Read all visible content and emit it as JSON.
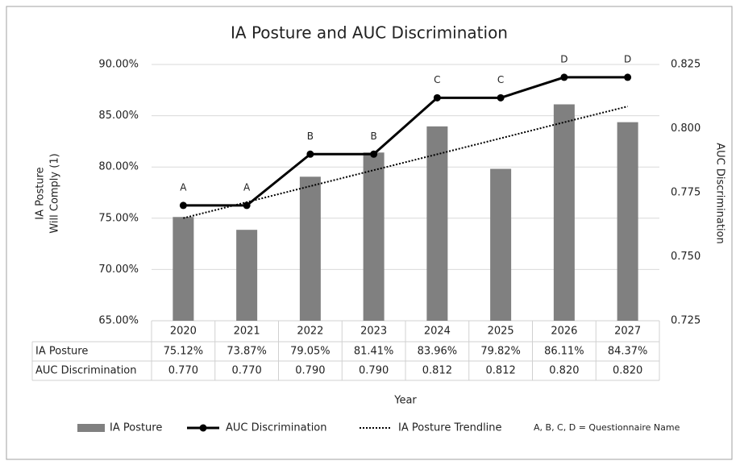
{
  "chart_data": {
    "type": "bar-line",
    "title": "IA Posture and AUC Discrimination",
    "categories": [
      "2020",
      "2021",
      "2022",
      "2023",
      "2024",
      "2025",
      "2026",
      "2027"
    ],
    "xlabel": "Year",
    "ylabel": [
      "IA Posture",
      "Will Comply (1)"
    ],
    "y2label": "AUC Discrimination",
    "series": [
      {
        "name": "IA Posture",
        "type": "bar",
        "color": "#808080",
        "values": [
          75.12,
          73.87,
          79.05,
          81.41,
          83.96,
          79.82,
          86.11,
          84.37
        ],
        "value_labels": [
          "75.12%",
          "73.87%",
          "79.05%",
          "81.41%",
          "83.96%",
          "79.82%",
          "86.11%",
          "84.37%"
        ]
      },
      {
        "name": "AUC Discrimination",
        "type": "line",
        "axis": "y2",
        "color": "#000000",
        "values": [
          0.77,
          0.77,
          0.79,
          0.79,
          0.812,
          0.812,
          0.82,
          0.82
        ],
        "value_labels": [
          "0.770",
          "0.770",
          "0.790",
          "0.790",
          "0.812",
          "0.812",
          "0.820",
          "0.820"
        ],
        "point_labels": [
          "A",
          "A",
          "B",
          "B",
          "C",
          "C",
          "D",
          "D"
        ]
      },
      {
        "name": "IA Posture Trendline",
        "type": "line",
        "style": "dotted",
        "color": "#000000",
        "values": [
          75.01,
          76.57,
          78.13,
          79.69,
          81.24,
          82.8,
          84.36,
          85.91
        ]
      }
    ],
    "note": "A, B, C, D = Questionnaire Name",
    "ylim": [
      65,
      90
    ],
    "yticks": [
      {
        "value": 65,
        "label": "65.00%"
      },
      {
        "value": 70,
        "label": "70.00%"
      },
      {
        "value": 75,
        "label": "75.00%"
      },
      {
        "value": 80,
        "label": "80.00%"
      },
      {
        "value": 85,
        "label": "85.00%"
      },
      {
        "value": 90,
        "label": "90.00%"
      }
    ],
    "y2lim": [
      0.725,
      0.825
    ],
    "y2ticks": [
      0.725,
      {
        "value": 0.75,
        "label": "0.750"
      },
      0.775,
      {
        "value": 0.8,
        "label": "0.800"
      },
      0.825
    ],
    "grid": true
  }
}
